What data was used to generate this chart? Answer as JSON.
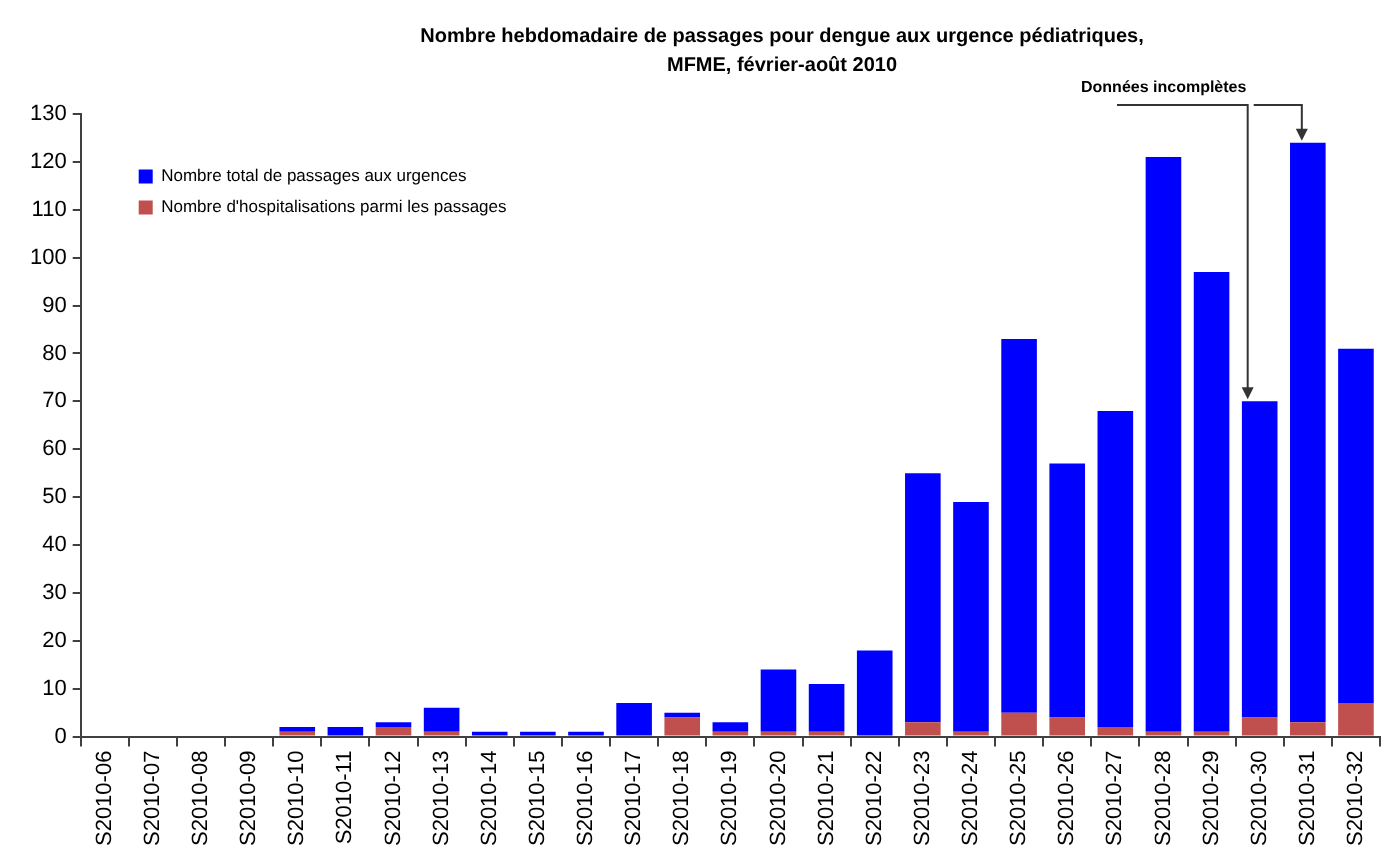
{
  "chart_data": {
    "type": "bar",
    "title": "Nombre hebdomadaire de passages pour dengue aux urgence pédiatriques,\nMFME, février-août 2010",
    "categories": [
      "S2010-06",
      "S2010-07",
      "S2010-08",
      "S2010-09",
      "S2010-10",
      "S2010-11",
      "S2010-12",
      "S2010-13",
      "S2010-14",
      "S2010-15",
      "S2010-16",
      "S2010-17",
      "S2010-18",
      "S2010-19",
      "S2010-20",
      "S2010-21",
      "S2010-22",
      "S2010-23",
      "S2010-24",
      "S2010-25",
      "S2010-26",
      "S2010-27",
      "S2010-28",
      "S2010-29",
      "S2010-30",
      "S2010-31",
      "S2010-32"
    ],
    "stacked": true,
    "series": [
      {
        "name": "Nombre d'hospitalisations parmi les passages",
        "color": "#c0504d",
        "values": [
          0,
          0,
          0,
          0,
          1,
          0,
          2,
          1,
          0,
          0,
          0,
          0,
          4,
          1,
          1,
          1,
          0,
          3,
          1,
          5,
          4,
          2,
          1,
          1,
          4,
          3,
          7
        ]
      },
      {
        "name": "Nombre total de passages aux urgences",
        "color": "#0000ff",
        "values": [
          0,
          0,
          0,
          0,
          1,
          2,
          1,
          5,
          1,
          1,
          1,
          7,
          1,
          2,
          13,
          10,
          18,
          52,
          48,
          78,
          53,
          66,
          120,
          96,
          66,
          121,
          74
        ]
      }
    ],
    "ylim": [
      0,
      130
    ],
    "yticks": [
      0,
      10,
      20,
      30,
      40,
      50,
      60,
      70,
      80,
      90,
      100,
      110,
      120,
      130
    ],
    "legend": "top left",
    "annotations": [
      {
        "text": "Données incomplètes",
        "x": "S2010-30",
        "y": 70
      }
    ]
  }
}
